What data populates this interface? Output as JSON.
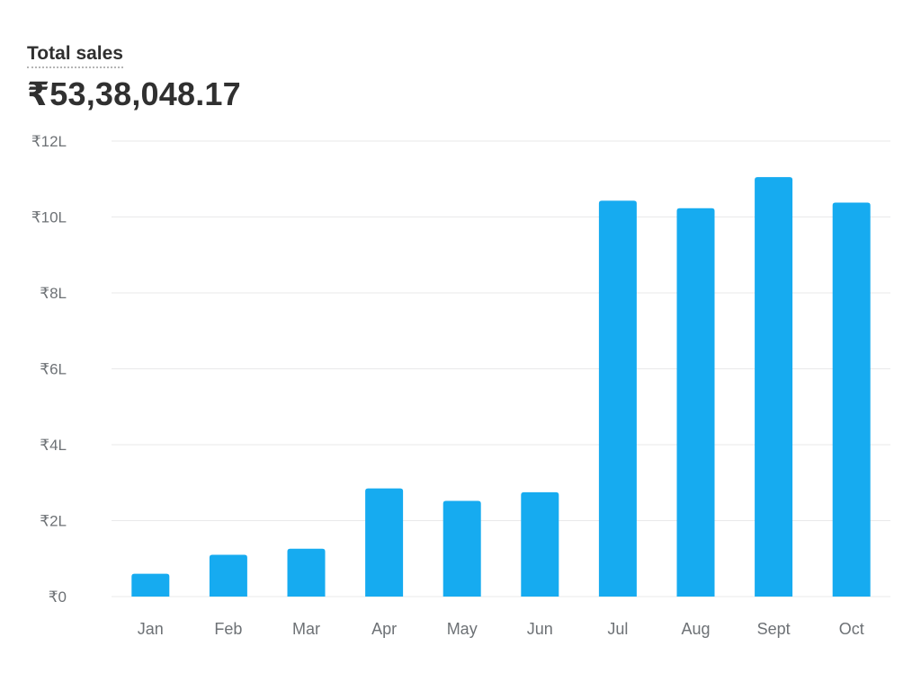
{
  "header": {
    "title": "Total sales",
    "total": "₹53,38,048.17"
  },
  "colors": {
    "bar": "#16abf0",
    "grid": "#e9e9ea",
    "label": "#6d7175"
  },
  "chart_data": {
    "type": "bar",
    "title": "Total sales",
    "categories": [
      "Jan",
      "Feb",
      "Mar",
      "Apr",
      "May",
      "Jun",
      "Jul",
      "Aug",
      "Sept",
      "Oct"
    ],
    "values": [
      60000,
      110000,
      126000,
      285000,
      252000,
      275000,
      1043000,
      1023000,
      1105000,
      1038000
    ],
    "ylim": [
      0,
      1200000
    ],
    "yticks": [
      0,
      200000,
      400000,
      600000,
      800000,
      1000000,
      1200000
    ],
    "ytick_labels": [
      "₹0",
      "₹2L",
      "₹4L",
      "₹6L",
      "₹8L",
      "₹10L",
      "₹12L"
    ],
    "grid": true,
    "legend": "none",
    "xlabel": "",
    "ylabel": ""
  }
}
